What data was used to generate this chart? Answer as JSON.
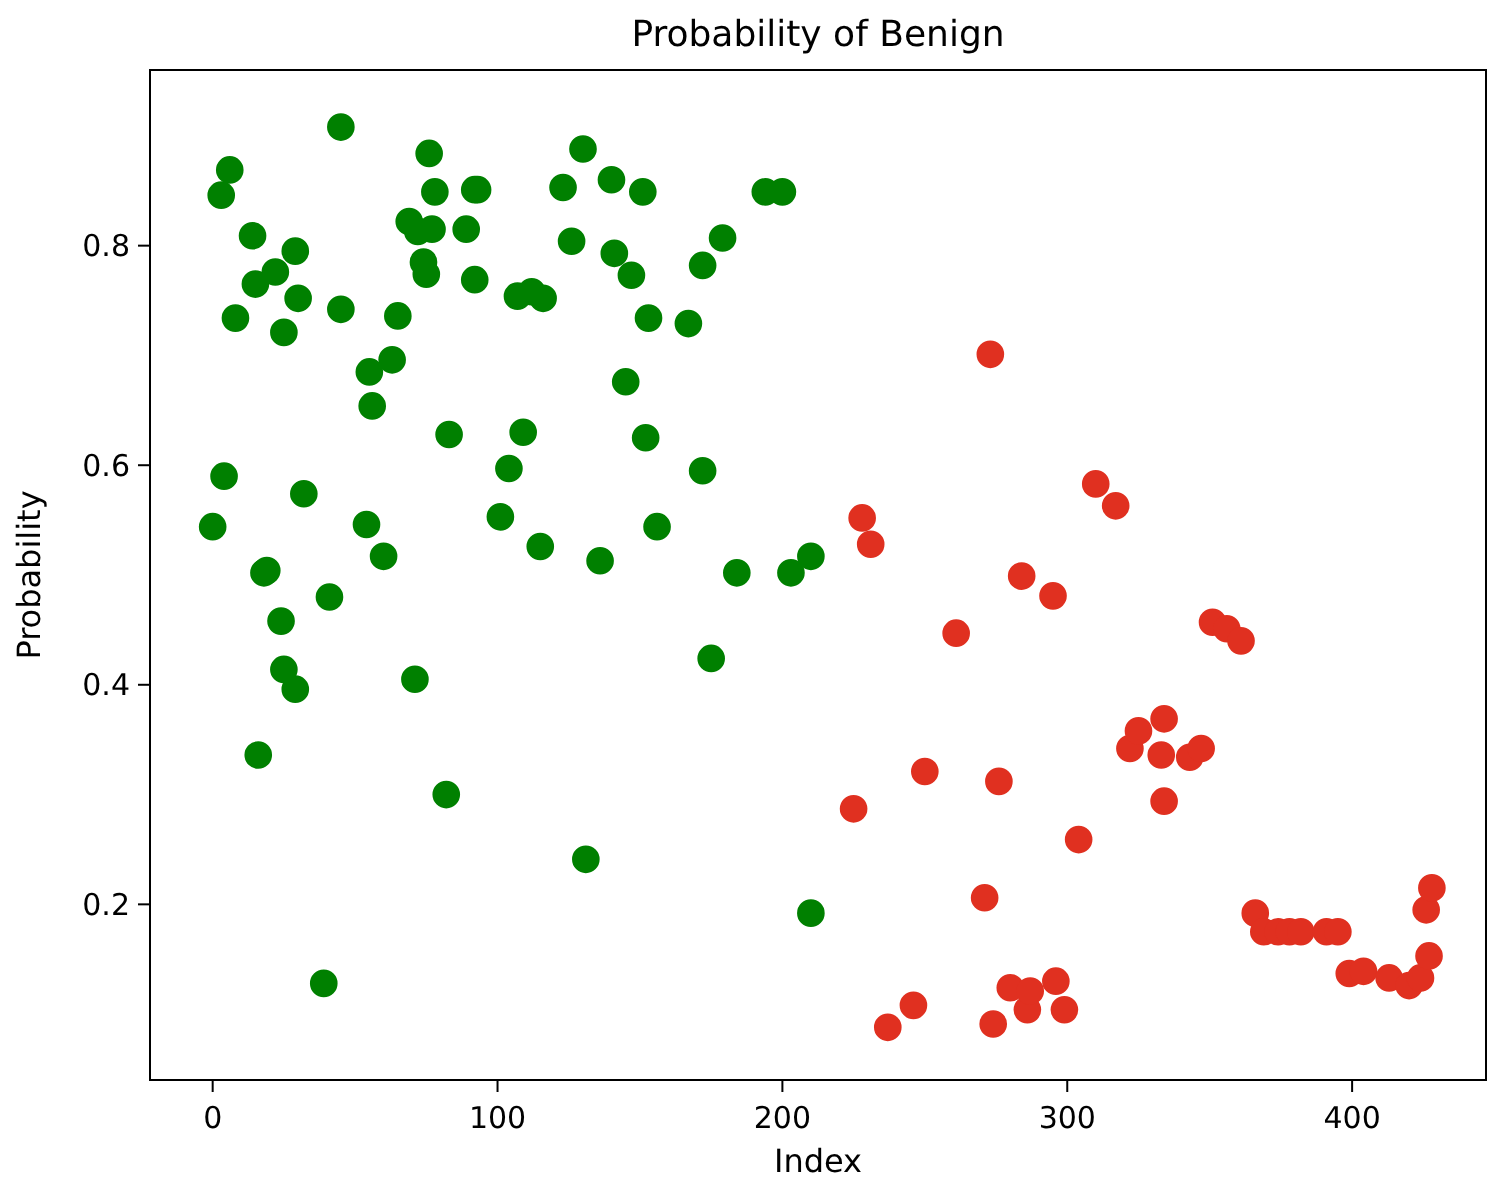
{
  "chart_data": {
    "type": "scatter",
    "title": "Probability of Benign",
    "xlabel": "Index",
    "ylabel": "Probability",
    "xlim": [
      -22,
      447
    ],
    "ylim": [
      0.04,
      0.96
    ],
    "xticks": [
      0,
      100,
      200,
      300,
      400
    ],
    "yticks": [
      0.2,
      0.4,
      0.6,
      0.8
    ],
    "grid": false,
    "marker": "circle",
    "series": [
      {
        "color": "#008000",
        "x": [
          0,
          3,
          4,
          6,
          8,
          14,
          15,
          16,
          18,
          19,
          22,
          24,
          25,
          25,
          29,
          29,
          30,
          32,
          39,
          41,
          45,
          45,
          54,
          55,
          56,
          60,
          63,
          65,
          69,
          71,
          72,
          74,
          75,
          76,
          77,
          78,
          82,
          83,
          89,
          92,
          92,
          93,
          101,
          104,
          107,
          109,
          112,
          115,
          116,
          123,
          126,
          130,
          131,
          136,
          140,
          141,
          145,
          147,
          151,
          152,
          153,
          156,
          167,
          172,
          172,
          175,
          179,
          184,
          194,
          200,
          203,
          210,
          210
        ],
        "values": [
          0.544,
          0.846,
          0.59,
          0.869,
          0.734,
          0.809,
          0.765,
          0.336,
          0.502,
          0.504,
          0.776,
          0.458,
          0.721,
          0.414,
          0.795,
          0.396,
          0.752,
          0.574,
          0.128,
          0.48,
          0.908,
          0.742,
          0.546,
          0.685,
          0.654,
          0.517,
          0.696,
          0.736,
          0.822,
          0.405,
          0.813,
          0.785,
          0.774,
          0.884,
          0.815,
          0.849,
          0.3,
          0.628,
          0.815,
          0.851,
          0.769,
          0.851,
          0.553,
          0.597,
          0.754,
          0.63,
          0.758,
          0.526,
          0.752,
          0.853,
          0.804,
          0.888,
          0.241,
          0.513,
          0.86,
          0.793,
          0.676,
          0.773,
          0.849,
          0.625,
          0.734,
          0.544,
          0.729,
          0.782,
          0.595,
          0.424,
          0.807,
          0.502,
          0.849,
          0.849,
          0.502,
          0.517,
          0.192
        ]
      },
      {
        "color": "#e03020",
        "x": [
          225,
          228,
          231,
          237,
          246,
          250,
          261,
          271,
          273,
          274,
          276,
          280,
          284,
          286,
          287,
          295,
          296,
          299,
          304,
          310,
          317,
          322,
          325,
          333,
          334,
          334,
          343,
          347,
          351,
          356,
          361,
          366,
          369,
          374,
          378,
          382,
          391,
          395,
          399,
          404,
          413,
          420,
          424,
          426,
          427,
          428
        ],
        "values": [
          0.287,
          0.552,
          0.528,
          0.088,
          0.108,
          0.321,
          0.447,
          0.206,
          0.701,
          0.091,
          0.312,
          0.124,
          0.499,
          0.104,
          0.121,
          0.481,
          0.13,
          0.104,
          0.259,
          0.583,
          0.563,
          0.342,
          0.358,
          0.336,
          0.369,
          0.294,
          0.334,
          0.342,
          0.457,
          0.451,
          0.44,
          0.192,
          0.175,
          0.175,
          0.175,
          0.175,
          0.175,
          0.175,
          0.137,
          0.139,
          0.133,
          0.126,
          0.133,
          0.195,
          0.153,
          0.215
        ]
      }
    ]
  }
}
